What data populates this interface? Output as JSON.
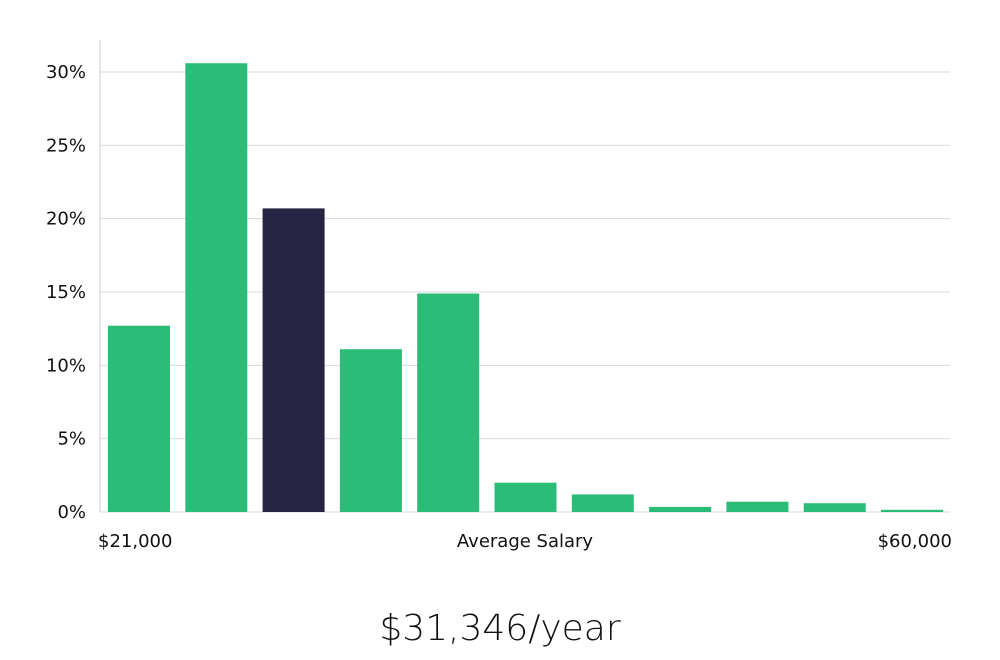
{
  "colors": {
    "bar": "#2bbd77",
    "highlight": "#272443",
    "grid": "#d9d9d9",
    "axis": "#cccccc"
  },
  "chart_data": {
    "type": "bar",
    "title": "",
    "xlabel": "Average Salary",
    "ylabel": "",
    "x_start_label": "$21,000",
    "x_end_label": "$60,000",
    "ylim": [
      0,
      30
    ],
    "yticks": [
      "0%",
      "5%",
      "10%",
      "15%",
      "20%",
      "25%",
      "30%"
    ],
    "grid": true,
    "values": [
      12.7,
      30.6,
      20.7,
      11.1,
      14.9,
      2.0,
      1.2,
      0.35,
      0.7,
      0.6,
      0.15
    ],
    "highlight_index": 2
  },
  "headline": "$31,346/year"
}
